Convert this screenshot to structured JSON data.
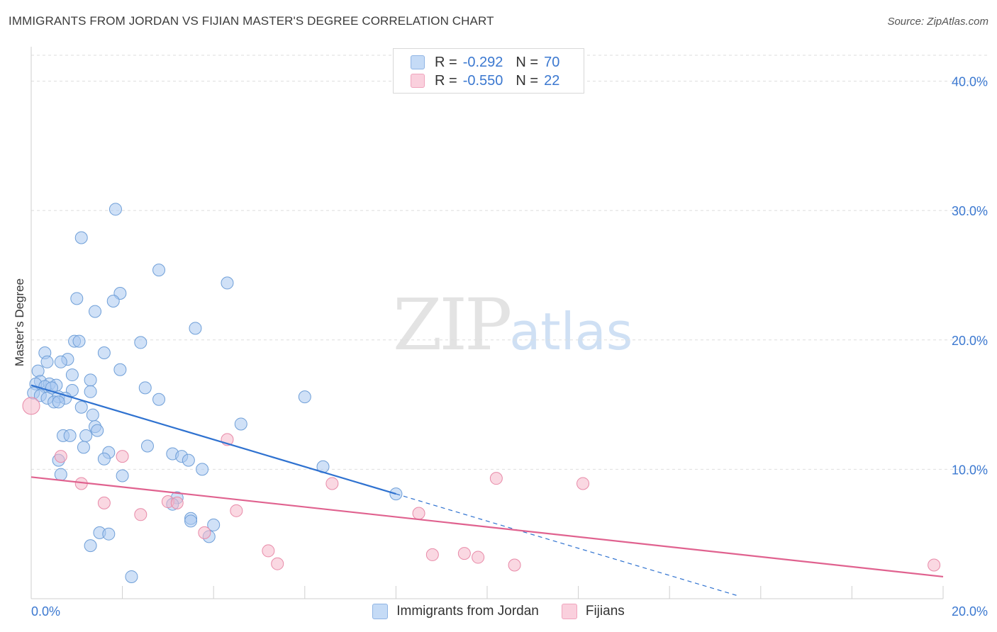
{
  "title": "IMMIGRANTS FROM JORDAN VS FIJIAN MASTER'S DEGREE CORRELATION CHART",
  "source": "Source: ZipAtlas.com",
  "watermark": {
    "part1": "ZIP",
    "part2": "atlas"
  },
  "legend": {
    "rows": [
      {
        "r_label": "R =",
        "r_value": "-0.292",
        "n_label": "N =",
        "n_value": "70",
        "color": "#a9c8f0"
      },
      {
        "r_label": "R =",
        "r_value": "-0.550",
        "n_label": "N =",
        "n_value": "22",
        "color": "#f6b8cb"
      }
    ]
  },
  "bottom_legend": [
    "Immigrants from Jordan",
    "Fijians"
  ],
  "chart_data": {
    "type": "scatter",
    "title": "IMMIGRANTS FROM JORDAN VS FIJIAN MASTER'S DEGREE CORRELATION CHART",
    "xlabel": "",
    "ylabel": "Master's Degree",
    "xlim": [
      0,
      20
    ],
    "ylim": [
      0,
      40
    ],
    "x_tick_labels": [
      "0.0%",
      "20.0%"
    ],
    "y_tick_values": [
      10,
      20,
      30,
      40
    ],
    "y_tick_labels": [
      "10.0%",
      "20.0%",
      "30.0%",
      "40.0%"
    ],
    "grid": true,
    "legend_position": "top-center",
    "series": [
      {
        "name": "Immigrants from Jordan",
        "color": "#a9c8f0",
        "stroke": "#6f9fd8",
        "line_color": "#2f72d0",
        "trend": {
          "x0": 0,
          "y0": 16.5,
          "x1": 8.0,
          "y1": 8.1,
          "dash_to_x": 15.5
        },
        "points": [
          [
            1.85,
            30.1
          ],
          [
            1.1,
            27.9
          ],
          [
            2.8,
            25.4
          ],
          [
            4.3,
            24.4
          ],
          [
            1.95,
            23.6
          ],
          [
            1.0,
            23.2
          ],
          [
            1.8,
            23.0
          ],
          [
            1.4,
            22.2
          ],
          [
            3.6,
            20.9
          ],
          [
            0.95,
            19.9
          ],
          [
            1.05,
            19.9
          ],
          [
            2.4,
            19.8
          ],
          [
            0.3,
            19.0
          ],
          [
            1.6,
            19.0
          ],
          [
            0.8,
            18.5
          ],
          [
            0.65,
            18.3
          ],
          [
            0.35,
            18.3
          ],
          [
            1.95,
            17.7
          ],
          [
            0.15,
            17.6
          ],
          [
            0.9,
            17.3
          ],
          [
            1.3,
            16.9
          ],
          [
            0.2,
            16.8
          ],
          [
            0.4,
            16.6
          ],
          [
            0.1,
            16.6
          ],
          [
            0.55,
            16.5
          ],
          [
            0.3,
            16.4
          ],
          [
            0.45,
            16.3
          ],
          [
            2.5,
            16.3
          ],
          [
            0.9,
            16.1
          ],
          [
            1.3,
            16.0
          ],
          [
            0.05,
            15.9
          ],
          [
            0.2,
            15.7
          ],
          [
            0.6,
            15.6
          ],
          [
            0.35,
            15.5
          ],
          [
            0.75,
            15.5
          ],
          [
            6.0,
            15.6
          ],
          [
            2.8,
            15.4
          ],
          [
            0.5,
            15.2
          ],
          [
            0.6,
            15.2
          ],
          [
            1.1,
            14.8
          ],
          [
            1.35,
            14.2
          ],
          [
            4.6,
            13.5
          ],
          [
            1.4,
            13.3
          ],
          [
            1.45,
            13.0
          ],
          [
            0.7,
            12.6
          ],
          [
            0.85,
            12.6
          ],
          [
            1.2,
            12.6
          ],
          [
            2.55,
            11.8
          ],
          [
            1.15,
            11.7
          ],
          [
            1.7,
            11.3
          ],
          [
            3.1,
            11.2
          ],
          [
            3.3,
            11.0
          ],
          [
            3.45,
            10.7
          ],
          [
            1.6,
            10.8
          ],
          [
            0.6,
            10.7
          ],
          [
            6.4,
            10.2
          ],
          [
            3.75,
            10.0
          ],
          [
            0.65,
            9.6
          ],
          [
            2.0,
            9.5
          ],
          [
            8.0,
            8.1
          ],
          [
            3.2,
            7.8
          ],
          [
            3.1,
            7.3
          ],
          [
            3.5,
            6.2
          ],
          [
            3.5,
            6.0
          ],
          [
            4.0,
            5.7
          ],
          [
            1.5,
            5.1
          ],
          [
            1.7,
            5.0
          ],
          [
            3.9,
            4.8
          ],
          [
            1.3,
            4.1
          ],
          [
            2.2,
            1.7
          ]
        ]
      },
      {
        "name": "Fijians",
        "color": "#f6b8cb",
        "stroke": "#e88aa8",
        "line_color": "#e0628f",
        "trend": {
          "x0": 0,
          "y0": 9.4,
          "x1": 20.0,
          "y1": 1.7
        },
        "points": [
          [
            0.0,
            14.9
          ],
          [
            4.3,
            12.3
          ],
          [
            0.65,
            11.0
          ],
          [
            2.0,
            11.0
          ],
          [
            10.2,
            9.3
          ],
          [
            6.6,
            8.9
          ],
          [
            12.1,
            8.9
          ],
          [
            1.1,
            8.9
          ],
          [
            3.0,
            7.5
          ],
          [
            1.6,
            7.4
          ],
          [
            3.2,
            7.4
          ],
          [
            4.5,
            6.8
          ],
          [
            8.5,
            6.6
          ],
          [
            2.4,
            6.5
          ],
          [
            3.8,
            5.1
          ],
          [
            5.2,
            3.7
          ],
          [
            8.8,
            3.4
          ],
          [
            9.5,
            3.5
          ],
          [
            9.8,
            3.2
          ],
          [
            5.4,
            2.7
          ],
          [
            10.6,
            2.6
          ],
          [
            19.8,
            2.6
          ]
        ]
      }
    ]
  }
}
